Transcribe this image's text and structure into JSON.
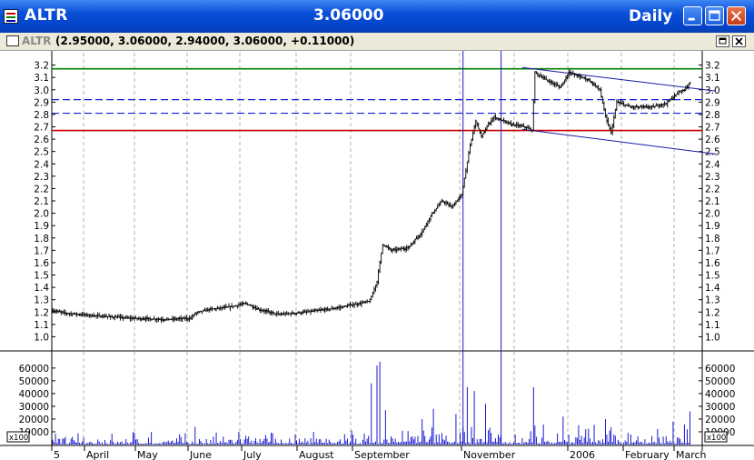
{
  "window": {
    "symbol": "ALTR",
    "last_price": "3.06000",
    "period": "Daily",
    "subtitle_symbol": "ALTR",
    "ohlc": "(2.95000, 3.06000, 2.94000, 3.06000, +0.11000)"
  },
  "colors": {
    "title_bar": "#0343c6",
    "price": "#000000",
    "volume": "#0000cc",
    "support": "#cc0000",
    "resistance": "#008000",
    "trend": "#1a1aa8",
    "fib": "#1a1ad8",
    "vline": "#1a1ac8"
  },
  "chart_data": {
    "type": "candlestick",
    "price_axis": {
      "ylim": [
        0.9,
        3.3
      ],
      "ticks": [
        "1.0",
        "1.1",
        "1.2",
        "1.3",
        "1.4",
        "1.5",
        "1.6",
        "1.7",
        "1.8",
        "1.9",
        "2.0",
        "2.1",
        "2.2",
        "2.3",
        "2.4",
        "2.5",
        "2.6",
        "2.7",
        "2.8",
        "2.9",
        "3.0",
        "3.1",
        "3.2"
      ]
    },
    "volume_axis": {
      "unit_label": "x100",
      "ylim": [
        0,
        72000
      ],
      "ticks": [
        "10000",
        "20000",
        "30000",
        "40000",
        "50000",
        "60000"
      ]
    },
    "x_labels": [
      "5",
      "April",
      "May",
      "June",
      "July",
      "August",
      "September",
      "November",
      "2006",
      "February",
      "March"
    ],
    "price_keypoints": [
      [
        0,
        1.21
      ],
      [
        10,
        1.19
      ],
      [
        30,
        1.17
      ],
      [
        55,
        1.15
      ],
      [
        80,
        1.14
      ],
      [
        98,
        1.15
      ],
      [
        101,
        1.19
      ],
      [
        110,
        1.22
      ],
      [
        125,
        1.24
      ],
      [
        137,
        1.27
      ],
      [
        146,
        1.22
      ],
      [
        160,
        1.18
      ],
      [
        180,
        1.2
      ],
      [
        200,
        1.23
      ],
      [
        218,
        1.27
      ],
      [
        225,
        1.29
      ],
      [
        230,
        1.45
      ],
      [
        234,
        1.75
      ],
      [
        240,
        1.7
      ],
      [
        252,
        1.72
      ],
      [
        262,
        1.85
      ],
      [
        268,
        1.98
      ],
      [
        276,
        2.1
      ],
      [
        283,
        2.05
      ],
      [
        290,
        2.15
      ],
      [
        296,
        2.55
      ],
      [
        300,
        2.75
      ],
      [
        304,
        2.62
      ],
      [
        309,
        2.72
      ],
      [
        313,
        2.78
      ],
      [
        325,
        2.72
      ],
      [
        335,
        2.7
      ],
      [
        340,
        2.67
      ],
      [
        342,
        3.14
      ],
      [
        350,
        3.08
      ],
      [
        360,
        3.02
      ],
      [
        366,
        3.14
      ],
      [
        380,
        3.08
      ],
      [
        388,
        3.0
      ],
      [
        392,
        2.78
      ],
      [
        396,
        2.65
      ],
      [
        400,
        2.9
      ],
      [
        410,
        2.86
      ],
      [
        425,
        2.86
      ],
      [
        435,
        2.89
      ],
      [
        441,
        2.95
      ],
      [
        445,
        2.99
      ],
      [
        448,
        3.0
      ],
      [
        452,
        3.06
      ]
    ],
    "volume_spikes": [
      [
        101,
        14000
      ],
      [
        132,
        10000
      ],
      [
        172,
        8000
      ],
      [
        212,
        11000
      ],
      [
        226,
        48000
      ],
      [
        230,
        62000
      ],
      [
        232,
        65000
      ],
      [
        236,
        27000
      ],
      [
        262,
        20000
      ],
      [
        270,
        28000
      ],
      [
        286,
        24000
      ],
      [
        294,
        45000
      ],
      [
        299,
        42000
      ],
      [
        307,
        32000
      ],
      [
        341,
        45000
      ],
      [
        362,
        22000
      ],
      [
        392,
        20000
      ],
      [
        440,
        18000
      ],
      [
        452,
        26000
      ]
    ],
    "horizontal_lines": [
      {
        "role": "resistance",
        "value": 3.17
      },
      {
        "role": "fib",
        "value": 2.92
      },
      {
        "role": "fib",
        "value": 2.81
      },
      {
        "role": "support",
        "value": 2.67
      }
    ],
    "trend_lines": [
      {
        "from": [
          333,
          3.18
        ],
        "to": [
          470,
          2.99
        ]
      },
      {
        "from": [
          333,
          2.68
        ],
        "to": [
          470,
          2.48
        ]
      }
    ],
    "vertical_lines_at_bar": [
      291,
      318
    ]
  }
}
